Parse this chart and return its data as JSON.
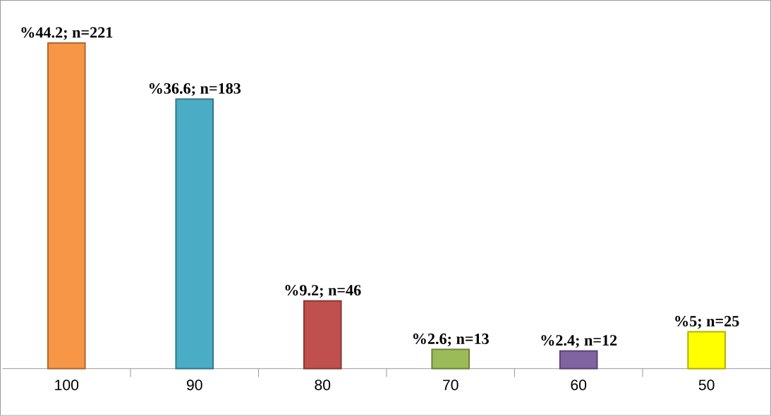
{
  "chart_data": {
    "type": "bar",
    "categories": [
      "100",
      "90",
      "80",
      "70",
      "60",
      "50"
    ],
    "values": [
      44.2,
      36.6,
      9.2,
      2.6,
      2.4,
      5
    ],
    "colors": [
      "#f79646",
      "#4bacc6",
      "#c0504d",
      "#9bbb59",
      "#8064a2",
      "#ffff00"
    ],
    "value_labels": [
      "%44.2; n=221",
      "%36.6; n=183",
      "%9.2; n=46",
      "%2.6; n=13",
      "%2.4; n=12",
      "%5; n=25"
    ]
  }
}
